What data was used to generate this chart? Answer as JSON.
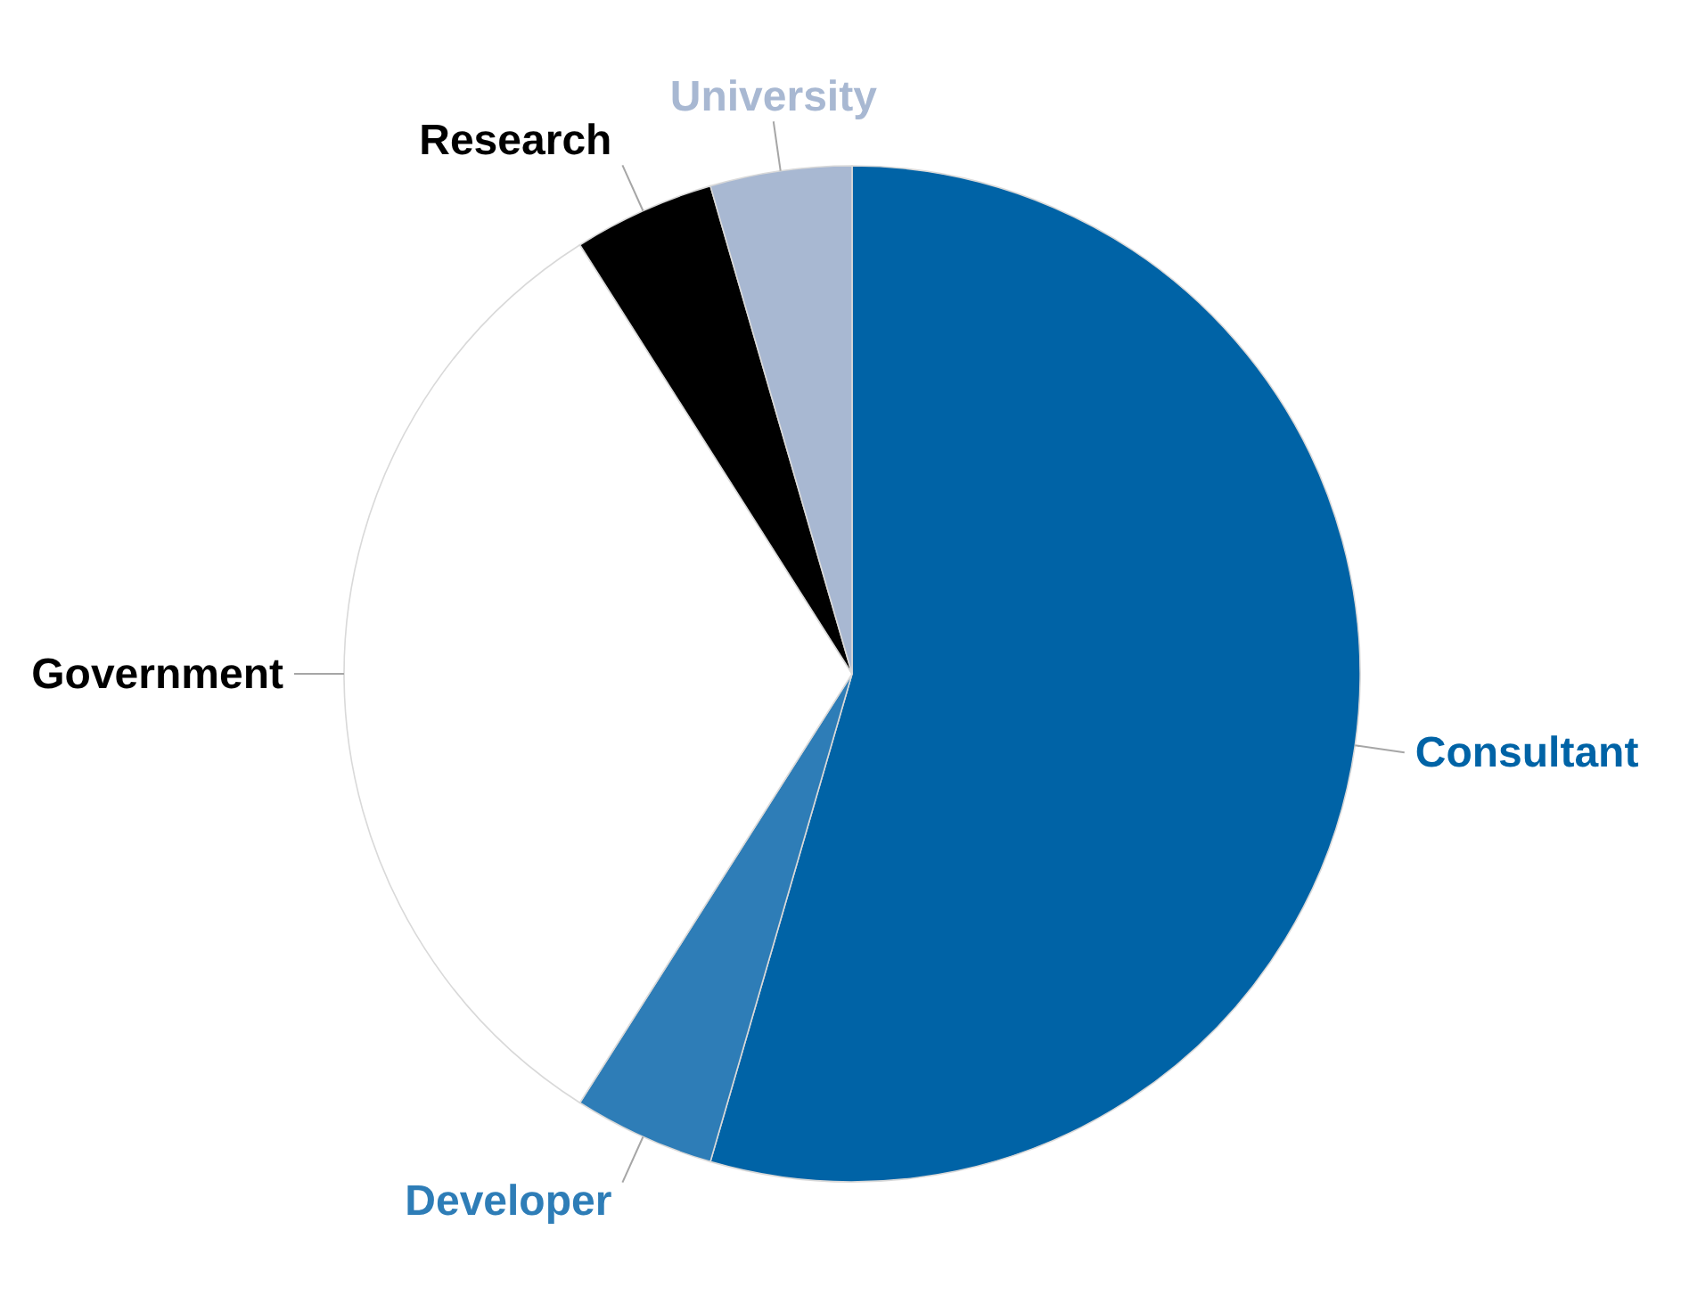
{
  "chart_data": {
    "type": "pie",
    "categories": [
      "Consultant",
      "Developer",
      "Government",
      "Research",
      "University"
    ],
    "values": [
      54.5,
      4.5,
      32,
      4.5,
      4.5
    ],
    "colors": [
      "#0063a6",
      "#2e7db7",
      "#ffffff",
      "#000000",
      "#a8b8d2"
    ]
  }
}
